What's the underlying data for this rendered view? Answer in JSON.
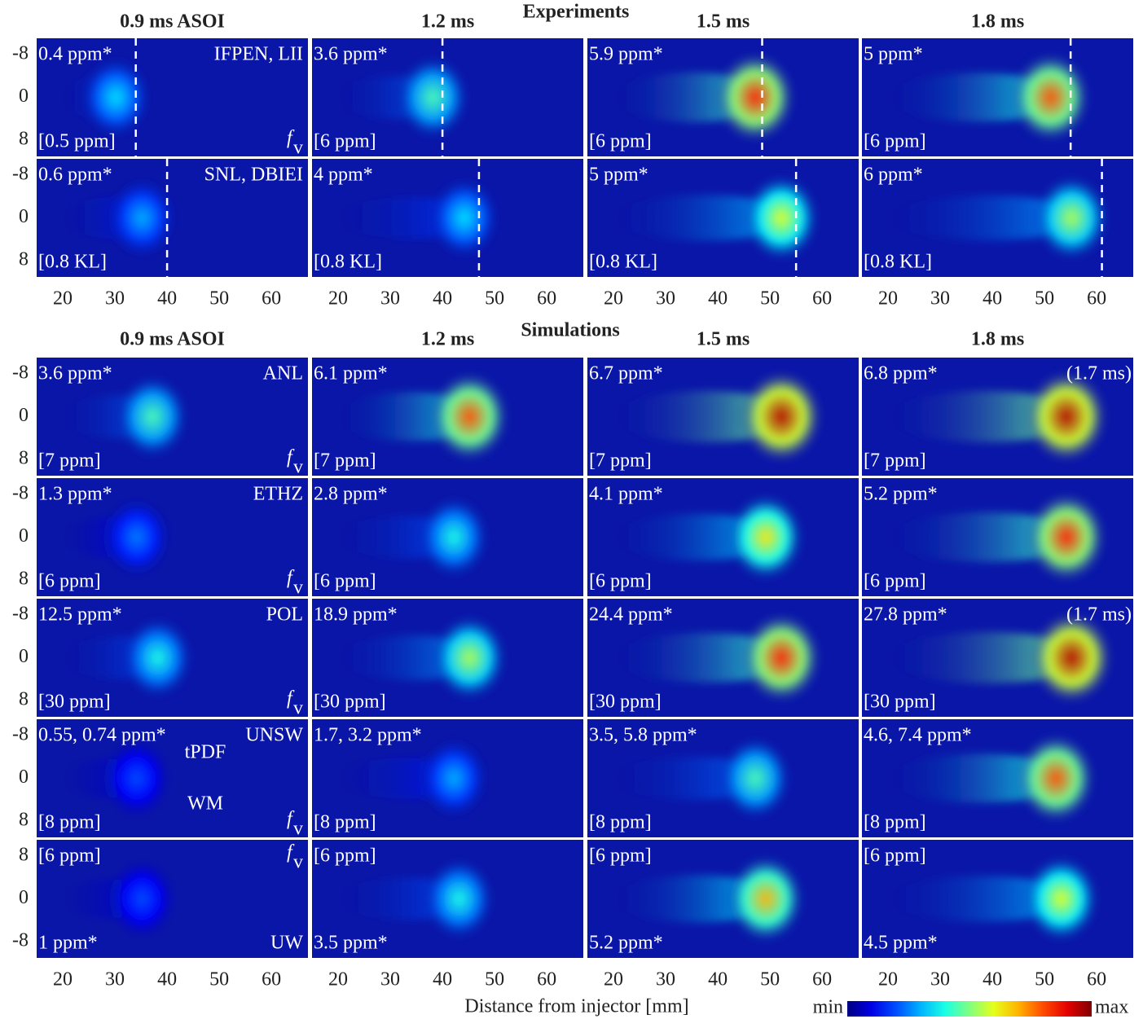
{
  "figure": {
    "xlim": [
      15,
      67
    ],
    "xticks": [
      20,
      30,
      40,
      50,
      60
    ],
    "ylim": [
      -11,
      11
    ],
    "yticks": [
      -8,
      0,
      8
    ],
    "x_label": "Distance from injector [mm]",
    "fv_symbol": {
      "main": "f",
      "sub": "v"
    },
    "colorbar": {
      "min": "min",
      "max": "max",
      "colormap": "jet"
    },
    "sections": [
      {
        "title": "Experiments",
        "column_titles": [
          "0.9 ms ASOI",
          "1.2 ms",
          "1.5 ms",
          "1.8 ms"
        ],
        "rows": [
          {
            "label": "IFPEN, LII",
            "fv": true,
            "panels": [
              {
                "peak": "0.4 ppm*",
                "scale": "[0.5 ppm]",
                "line_x": 34
              },
              {
                "peak": "3.6 ppm*",
                "scale": "[6 ppm]",
                "line_x": 40
              },
              {
                "peak": "5.9 ppm*",
                "scale": "[6 ppm]",
                "line_x": 48.5
              },
              {
                "peak": "5 ppm*",
                "scale": "[6 ppm]",
                "line_x": 55
              }
            ]
          },
          {
            "label": "SNL, DBIEI",
            "fv": false,
            "panels": [
              {
                "peak": "0.6 ppm*",
                "scale": "[0.8 KL]",
                "line_x": 40
              },
              {
                "peak": "4 ppm*",
                "scale": "[0.8 KL]",
                "line_x": 47
              },
              {
                "peak": "5 ppm*",
                "scale": "[0.8 KL]",
                "line_x": 55
              },
              {
                "peak": "6 ppm*",
                "scale": "[0.8 KL]",
                "line_x": 61
              }
            ]
          }
        ]
      },
      {
        "title": "Simulations",
        "column_titles": [
          "0.9 ms ASOI",
          "1.2 ms",
          "1.5 ms",
          "1.8 ms"
        ],
        "rows": [
          {
            "label": "ANL",
            "fv": true,
            "panels": [
              {
                "peak": "3.6 ppm*",
                "scale": "[7 ppm]"
              },
              {
                "peak": "6.1 ppm*",
                "scale": "[7 ppm]"
              },
              {
                "peak": "6.7 ppm*",
                "scale": "[7 ppm]"
              },
              {
                "peak": "6.8 ppm*",
                "scale": "[7 ppm]",
                "note": "(1.7 ms)"
              }
            ]
          },
          {
            "label": "ETHZ",
            "fv": true,
            "panels": [
              {
                "peak": "1.3 ppm*",
                "scale": "[6 ppm]"
              },
              {
                "peak": "2.8 ppm*",
                "scale": "[6 ppm]"
              },
              {
                "peak": "4.1 ppm*",
                "scale": "[6 ppm]"
              },
              {
                "peak": "5.2 ppm*",
                "scale": "[6 ppm]"
              }
            ]
          },
          {
            "label": "POL",
            "fv": true,
            "panels": [
              {
                "peak": "12.5 ppm*",
                "scale": "[30 ppm]"
              },
              {
                "peak": "18.9 ppm*",
                "scale": "[30 ppm]"
              },
              {
                "peak": "24.4 ppm*",
                "scale": "[30 ppm]"
              },
              {
                "peak": "27.8 ppm*",
                "scale": "[30 ppm]",
                "note": "(1.7 ms)"
              }
            ]
          },
          {
            "label": "UNSW",
            "fv": true,
            "notes": [
              "tPDF",
              "WM"
            ],
            "panels": [
              {
                "peak": "0.55, 0.74 ppm*",
                "scale": "[8 ppm]"
              },
              {
                "peak": "1.7, 3.2 ppm*",
                "scale": "[8 ppm]"
              },
              {
                "peak": "3.5, 5.8 ppm*",
                "scale": "[8 ppm]"
              },
              {
                "peak": "4.6, 7.4 ppm*",
                "scale": "[8 ppm]"
              }
            ]
          },
          {
            "label": "UW",
            "fv": true,
            "y_inverted": true,
            "panels": [
              {
                "peak": "1 ppm*",
                "scale": "[6 ppm]"
              },
              {
                "peak": "3.5 ppm*",
                "scale": "[6 ppm]"
              },
              {
                "peak": "5.2 ppm*",
                "scale": "[6 ppm]"
              },
              {
                "peak": "4.5 ppm*",
                "scale": "[6 ppm]"
              }
            ]
          }
        ]
      }
    ]
  }
}
